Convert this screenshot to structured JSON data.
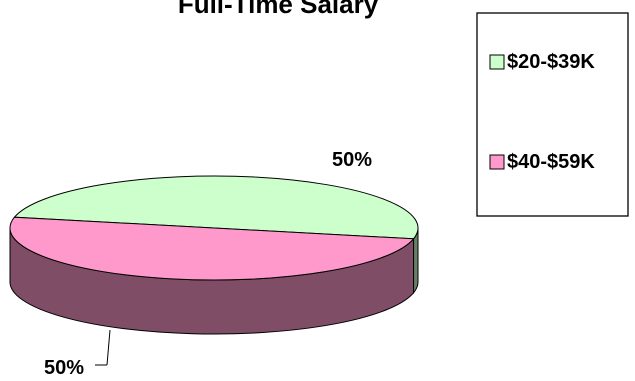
{
  "chart_data": {
    "type": "pie",
    "style": "3d",
    "title": "Full-Time Salary",
    "categories": [
      "$20-$39K",
      "$40-$59K"
    ],
    "values": [
      50,
      50
    ],
    "labels": [
      "50%",
      "50%"
    ],
    "colors": {
      "$20-$39K": {
        "top": "#CCFFCC",
        "side": "#668066"
      },
      "$40-$59K": {
        "top": "#FF99CC",
        "side": "#804D66"
      }
    },
    "legend": {
      "placement": "right",
      "entries": [
        "$20-$39K",
        "$40-$59K"
      ]
    }
  }
}
